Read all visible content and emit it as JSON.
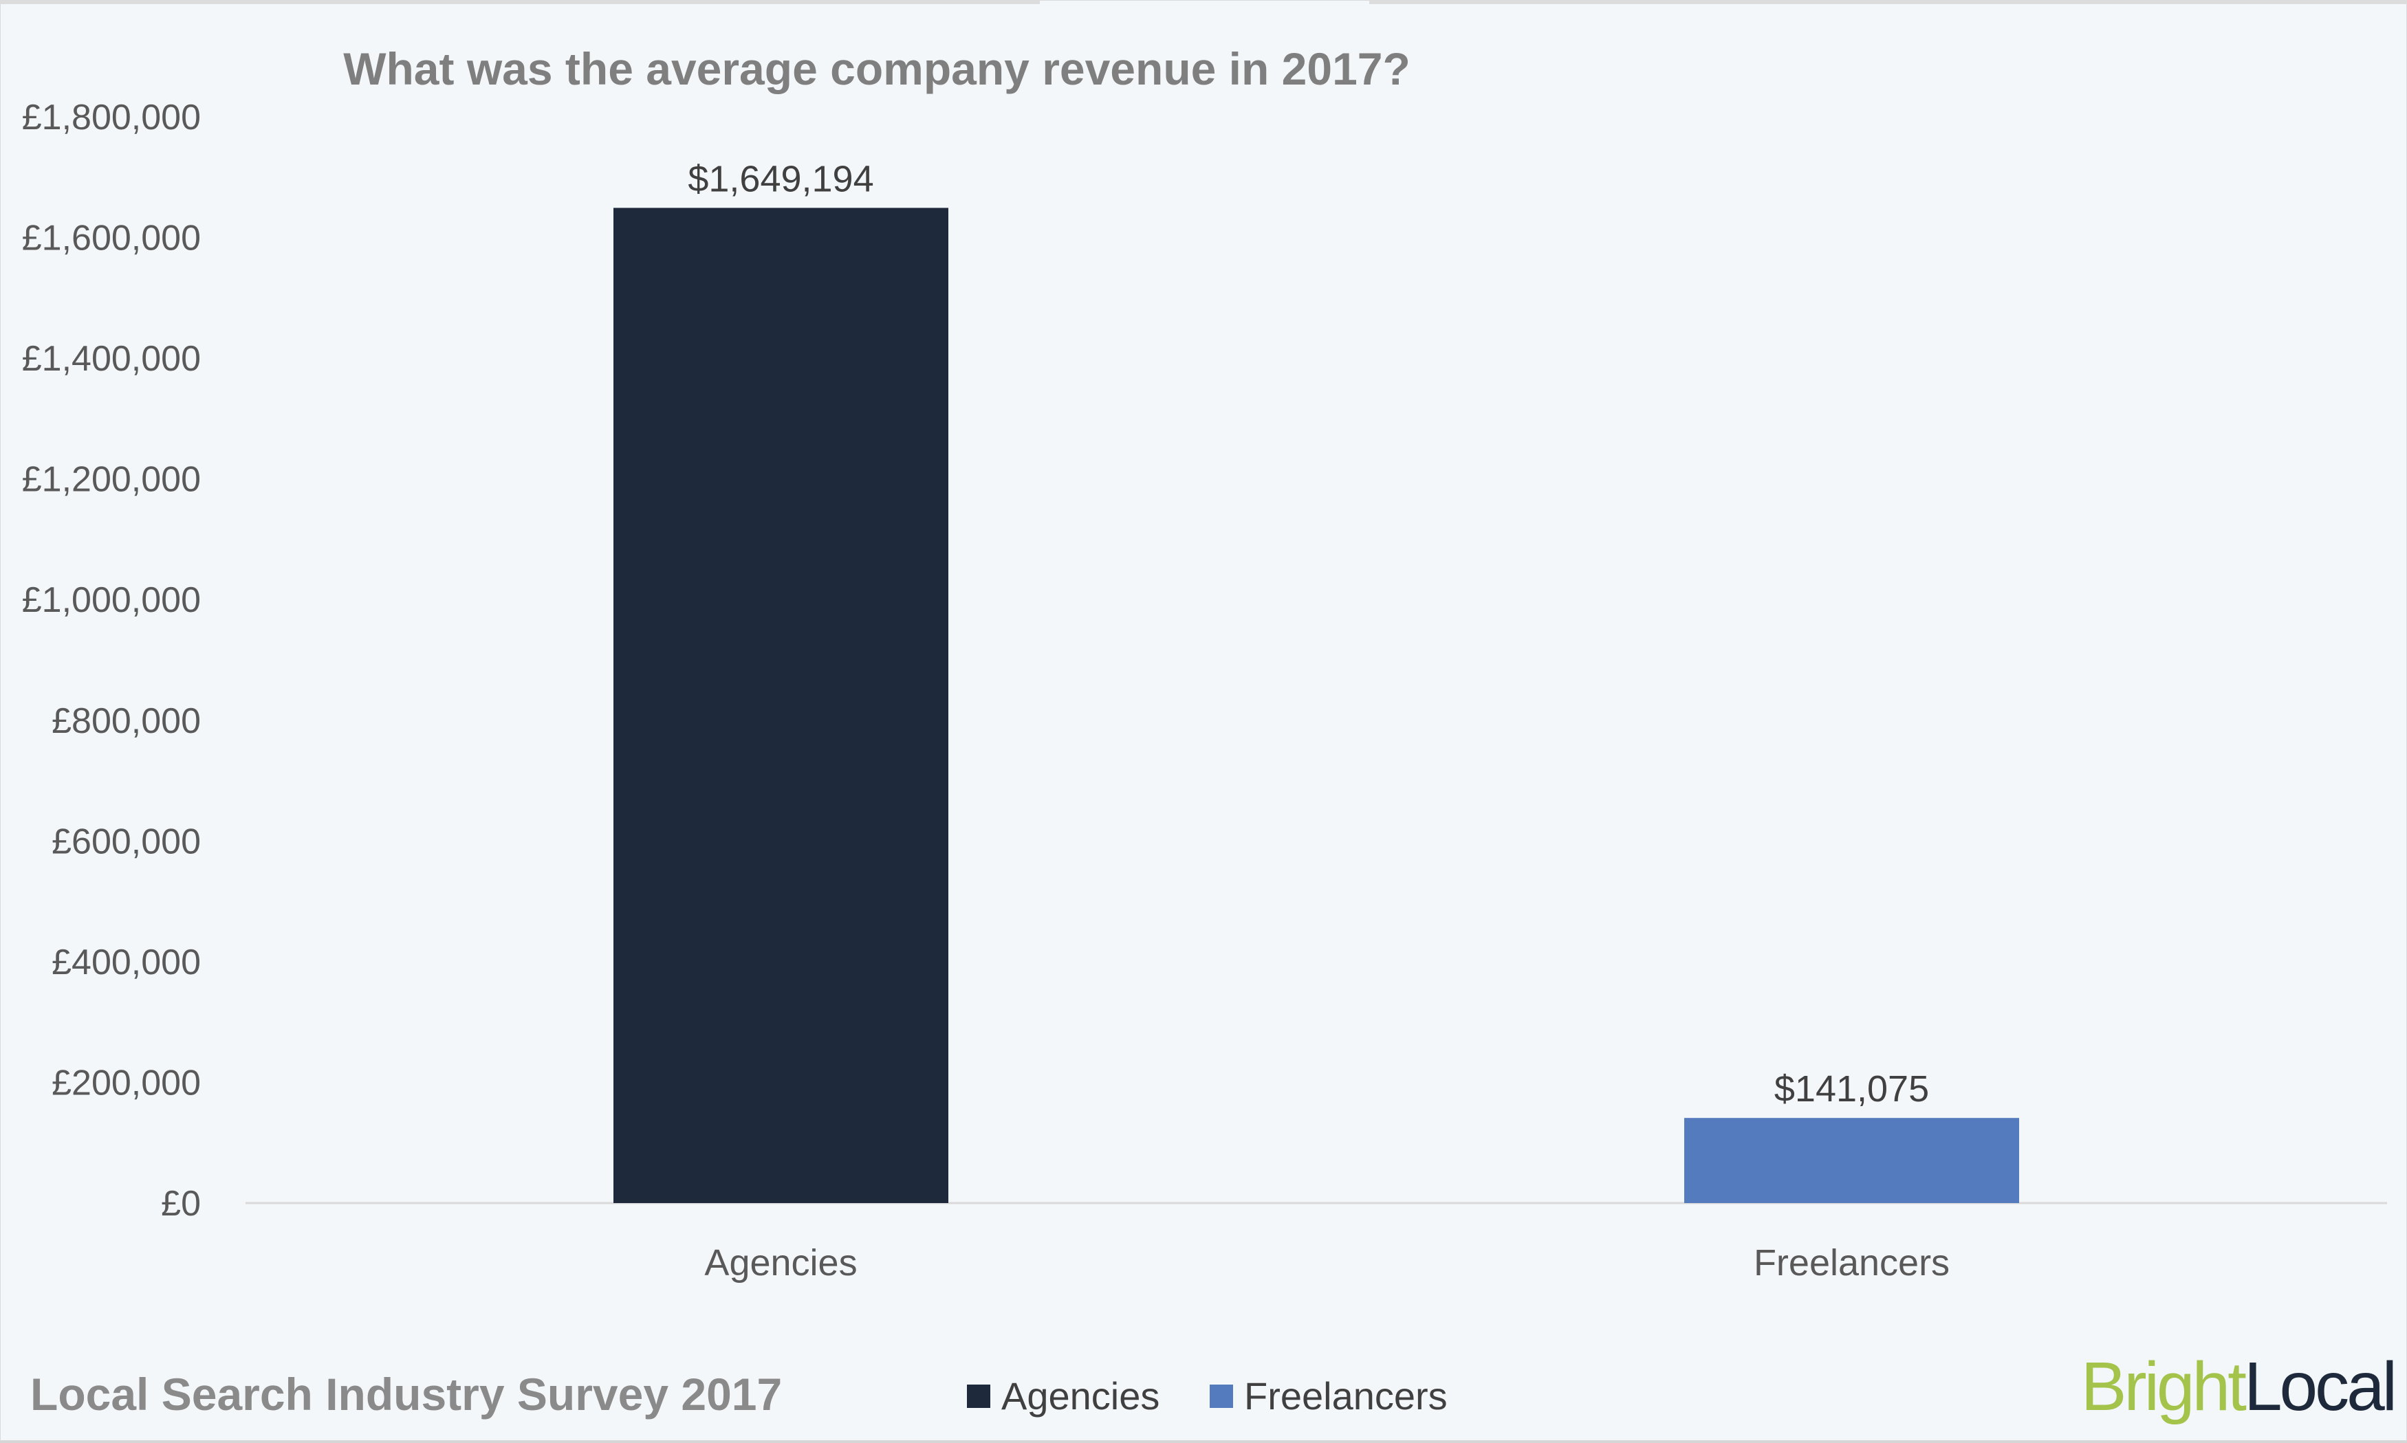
{
  "chart_data": {
    "type": "bar",
    "title": "What was the average company revenue in 2017?",
    "categories": [
      "Agencies",
      "Freelancers"
    ],
    "values": [
      1649194,
      141075
    ],
    "data_labels": [
      "$1,649,194",
      "$141,075"
    ],
    "colors": [
      "#1e2a3b",
      "#547bbd"
    ],
    "ylim": [
      0,
      1800000
    ],
    "yticks": [
      "£0",
      "£200,000",
      "£400,000",
      "£600,000",
      "£800,000",
      "£1,000,000",
      "£1,200,000",
      "£1,400,000",
      "£1,600,000",
      "£1,800,000"
    ],
    "ytick_values": [
      0,
      200000,
      400000,
      600000,
      800000,
      1000000,
      1200000,
      1400000,
      1600000,
      1800000
    ],
    "grid": false,
    "legend": {
      "placement": "bottom",
      "entries": [
        "Agencies",
        "Freelancers"
      ]
    }
  },
  "footer": "Local Search Industry Survey 2017",
  "logo": {
    "part1": "Bright",
    "part2": "Local",
    "color1": "#a4c34a",
    "color2": "#1e2a3b"
  }
}
